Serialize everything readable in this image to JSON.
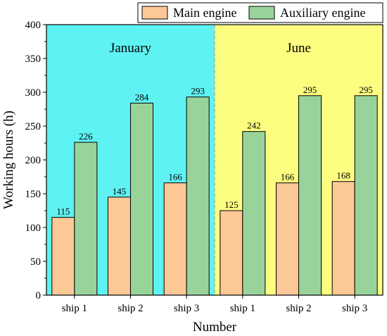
{
  "chart_data": {
    "type": "bar",
    "ylabel": "Working hours (h)",
    "xlabel": "Number",
    "ylim": [
      0,
      400
    ],
    "yticks": [
      0,
      50,
      100,
      150,
      200,
      250,
      300,
      350,
      400
    ],
    "categories": [
      "ship 1",
      "ship 2",
      "ship 3",
      "ship 1",
      "ship 2",
      "ship 3"
    ],
    "periods": [
      {
        "label": "January",
        "color": "#5ff2f2",
        "categories": [
          0,
          1,
          2
        ]
      },
      {
        "label": "June",
        "color": "#fdfd80",
        "categories": [
          3,
          4,
          5
        ]
      }
    ],
    "series": [
      {
        "name": "Main engine",
        "color": "#fcc896",
        "values": [
          115,
          145,
          166,
          125,
          166,
          168
        ]
      },
      {
        "name": "Auxiliary engine",
        "color": "#98d49a",
        "values": [
          226,
          284,
          293,
          242,
          295,
          295
        ]
      }
    ],
    "legend": "top-right"
  }
}
